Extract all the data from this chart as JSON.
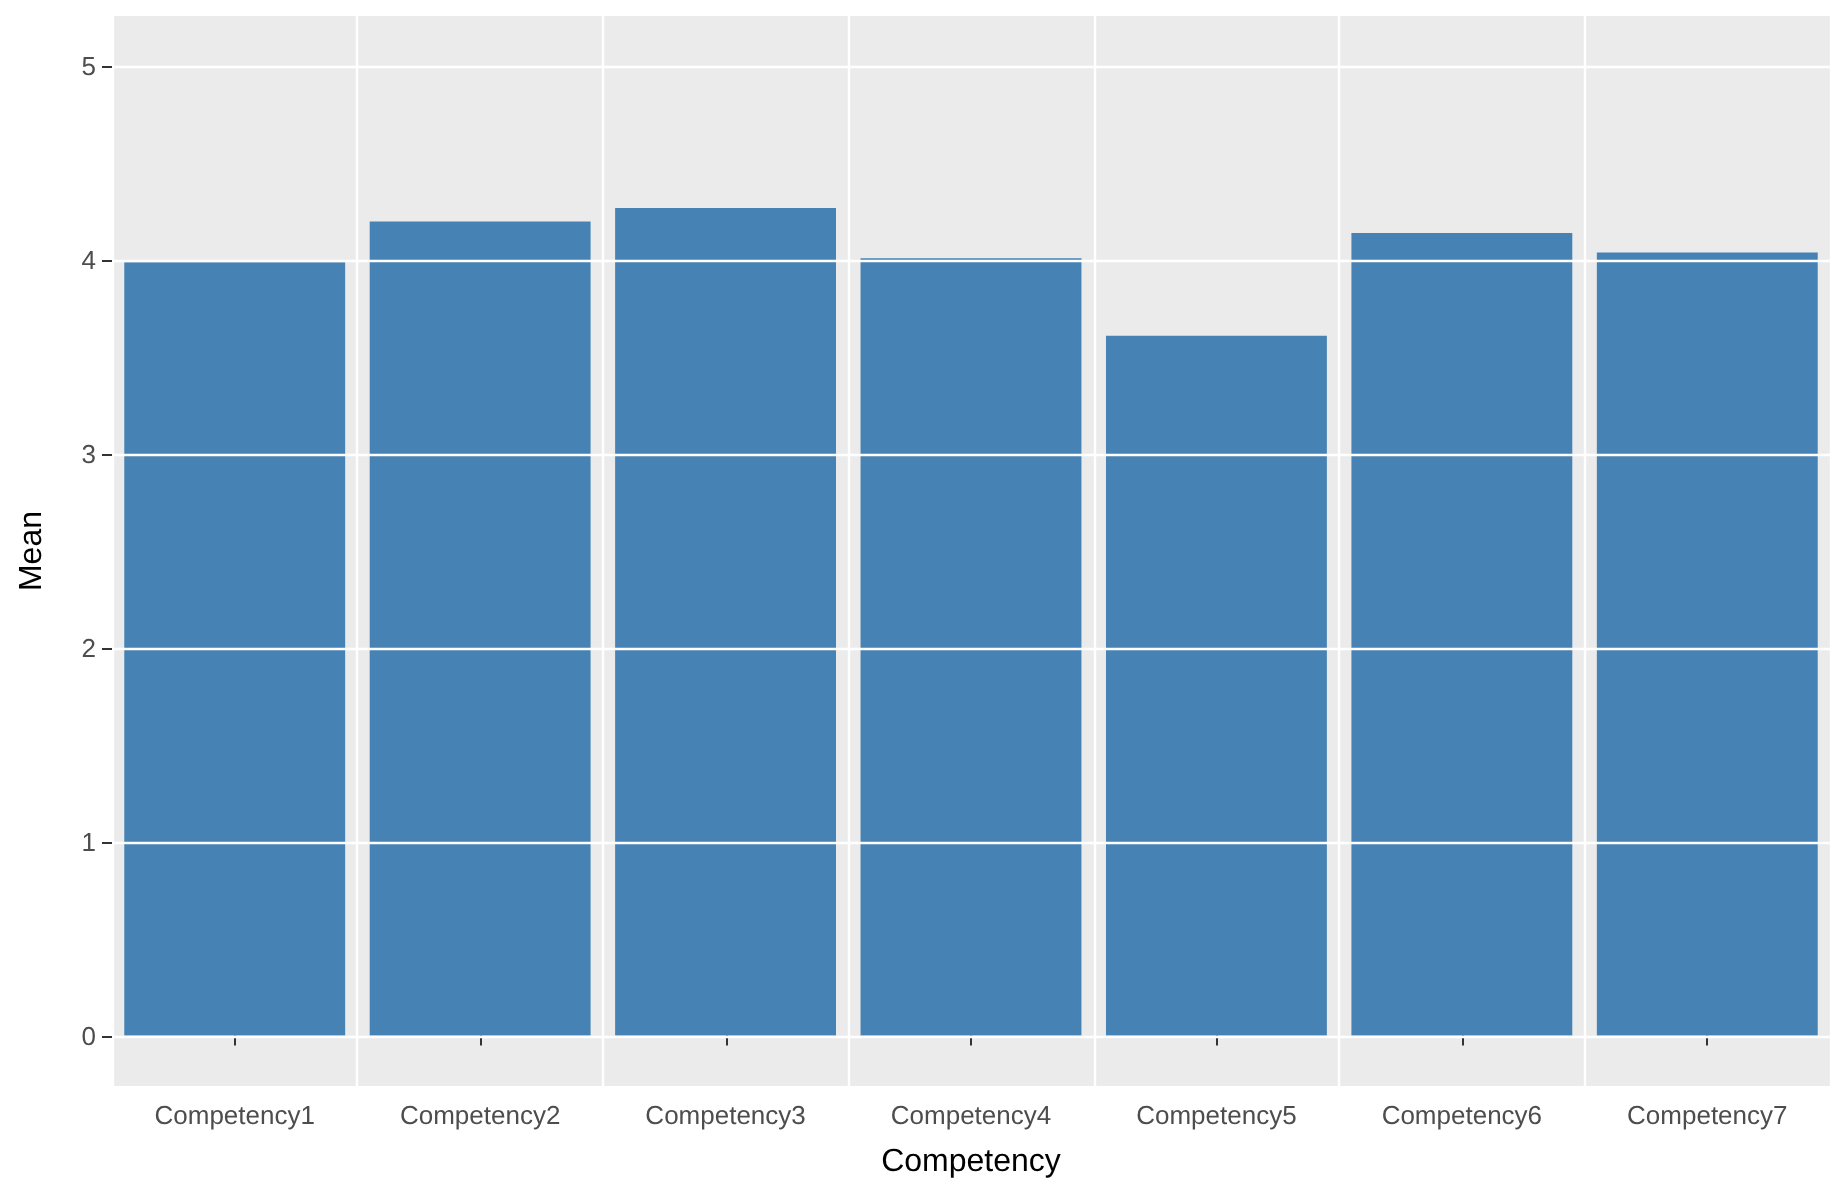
{
  "chart_data": {
    "type": "bar",
    "xlabel": "Competency",
    "ylabel": "Mean",
    "categories": [
      "Competency1",
      "Competency2",
      "Competency3",
      "Competency4",
      "Competency5",
      "Competency6",
      "Competency7"
    ],
    "values": [
      3.99,
      4.2,
      4.27,
      4.01,
      3.61,
      4.14,
      4.04
    ],
    "color": "#4682b4",
    "ylim": [
      -0.26,
      5.26
    ],
    "yticks": [
      0,
      1,
      2,
      3,
      4,
      5
    ],
    "grid": true
  }
}
